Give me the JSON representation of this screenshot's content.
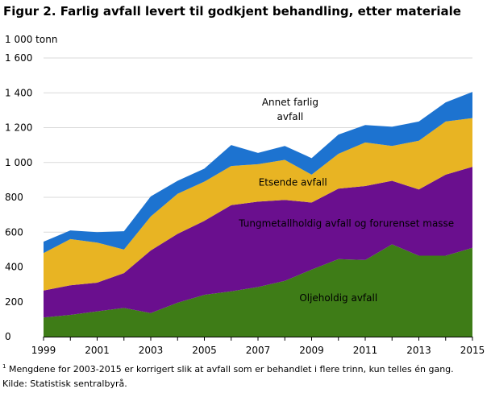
{
  "title": "Figur 2. Farlig avfall levert til godkjent behandling, etter materiale",
  "footnote": {
    "marker": "1",
    "text": "Mengdene for 2003-2015 er korrigert slik at avfall som er behandlet i flere trinn, kun telles én gang."
  },
  "source": "Kilde: Statistisk sentralbyrå.",
  "chart_data": {
    "type": "area",
    "stacked": true,
    "title": "Figur 2. Farlig avfall levert til godkjent behandling, etter materiale",
    "ylabel": "1 000 tonn",
    "xlabel": "",
    "ylim": [
      0,
      1600
    ],
    "xlim": [
      1999,
      2015
    ],
    "y_ticks": [
      0,
      200,
      400,
      600,
      800,
      1000,
      1200,
      1400,
      1600
    ],
    "y_tick_labels": [
      "0",
      "200",
      "400",
      "600",
      "800",
      "1 000",
      "1 200",
      "1 400",
      "1 600"
    ],
    "x_ticks": [
      1999,
      2001,
      2003,
      2005,
      2007,
      2009,
      2011,
      2013,
      2015
    ],
    "x_tick_labels": [
      "1999",
      "2001",
      "2003",
      "2005",
      "2007",
      "2009",
      "2011",
      "2013",
      "2015"
    ],
    "grid": "horizontal",
    "legend": "inline labels",
    "x": [
      1999,
      2000,
      2001,
      2002,
      2003,
      2004,
      2005,
      2006,
      2007,
      2008,
      2009,
      2010,
      2011,
      2012,
      2013,
      2014,
      2015
    ],
    "series": [
      {
        "name": "Oljeholdig avfall",
        "color": "#3e7c17",
        "values": [
          110,
          125,
          145,
          165,
          135,
          195,
          240,
          260,
          285,
          320,
          385,
          445,
          440,
          530,
          465,
          465,
          510
        ]
      },
      {
        "name": "Tungmetallholdig avfall og forurenset masse",
        "color": "#6a0f8e",
        "values": [
          155,
          170,
          165,
          200,
          360,
          395,
          425,
          495,
          490,
          465,
          385,
          405,
          425,
          365,
          380,
          465,
          465
        ]
      },
      {
        "name": "Etsende avfall",
        "color": "#e8b423",
        "values": [
          215,
          265,
          230,
          135,
          195,
          230,
          225,
          225,
          215,
          230,
          160,
          200,
          250,
          200,
          280,
          305,
          280
        ]
      },
      {
        "name": "Annet farlig avfall",
        "color": "#1d73d0",
        "values": [
          65,
          50,
          60,
          105,
          115,
          75,
          75,
          120,
          65,
          80,
          95,
          110,
          100,
          110,
          110,
          110,
          150
        ]
      }
    ],
    "area_labels": [
      {
        "series": "Annet farlig avfall",
        "lines": [
          "Annet farlig",
          "avfall"
        ]
      },
      {
        "series": "Etsende avfall",
        "lines": [
          "Etsende avfall"
        ]
      },
      {
        "series": "Tungmetallholdig avfall og forurenset masse",
        "lines": [
          "Tungmetallholdig avfall og forurenset masse"
        ]
      },
      {
        "series": "Oljeholdig avfall",
        "lines": [
          "Oljeholdig avfall"
        ]
      }
    ]
  }
}
